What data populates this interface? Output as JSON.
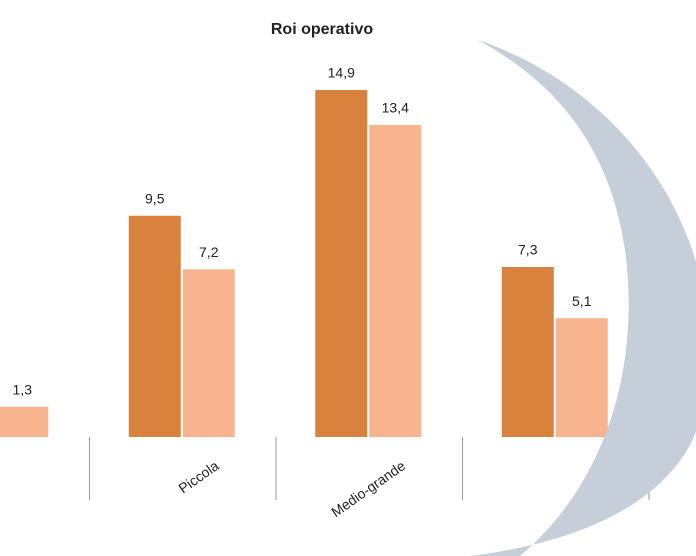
{
  "chart_data": {
    "type": "bar",
    "title": "Roi operativo",
    "categories": [
      null,
      "Piccola",
      "Medio-grande",
      null
    ],
    "series": [
      {
        "color": "#d9823e",
        "values": [
          null,
          9.5,
          14.9,
          7.3
        ],
        "value_labels": [
          null,
          "9,5",
          "14,9",
          "7,3"
        ]
      },
      {
        "color": "#f8b48f",
        "values": [
          1.3,
          7.2,
          13.4,
          5.1
        ],
        "value_labels": [
          "1,3",
          "7,2",
          "13,4",
          "5,1"
        ]
      }
    ]
  }
}
